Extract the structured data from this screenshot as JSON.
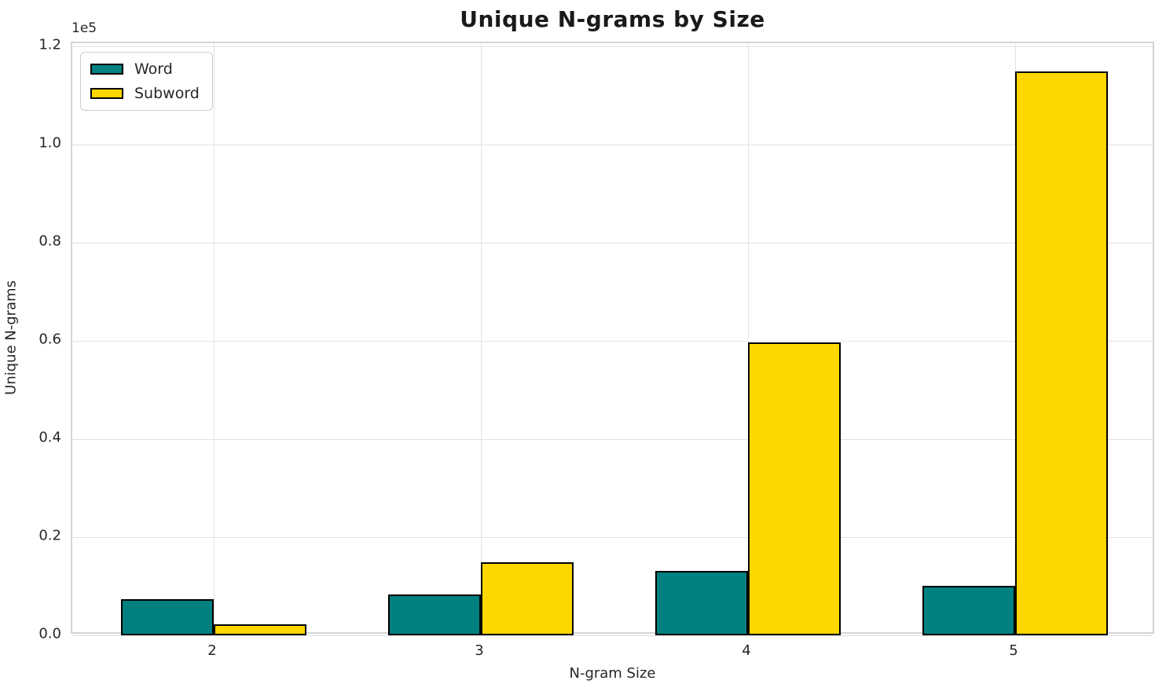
{
  "chart_data": {
    "type": "bar",
    "title": "Unique N-grams by Size",
    "xlabel": "N-gram Size",
    "ylabel": "Unique N-grams",
    "offset_text": "1e5",
    "categories": [
      "2",
      "3",
      "4",
      "5"
    ],
    "series": [
      {
        "name": "Word",
        "color": "#008080",
        "values": [
          7300,
          8300,
          13100,
          10100
        ]
      },
      {
        "name": "Subword",
        "color": "#FFD700",
        "values": [
          2200,
          14900,
          59700,
          114900
        ]
      }
    ],
    "ylim": [
      0,
      120000
    ],
    "yticks": [
      0,
      20000,
      40000,
      60000,
      80000,
      100000,
      120000
    ],
    "ytick_labels": [
      "0.0",
      "0.2",
      "0.4",
      "0.6",
      "0.8",
      "1.0",
      "1.2"
    ],
    "bar_edge_color": "#000000",
    "grid": true,
    "legend_position": "upper left"
  }
}
